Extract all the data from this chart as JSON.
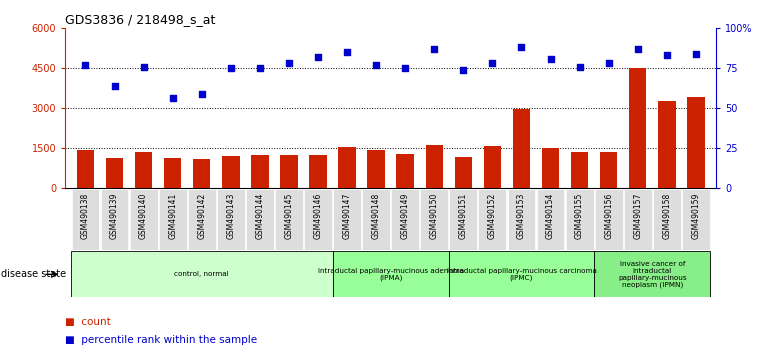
{
  "title": "GDS3836 / 218498_s_at",
  "samples": [
    "GSM490138",
    "GSM490139",
    "GSM490140",
    "GSM490141",
    "GSM490142",
    "GSM490143",
    "GSM490144",
    "GSM490145",
    "GSM490146",
    "GSM490147",
    "GSM490148",
    "GSM490149",
    "GSM490150",
    "GSM490151",
    "GSM490152",
    "GSM490153",
    "GSM490154",
    "GSM490155",
    "GSM490156",
    "GSM490157",
    "GSM490158",
    "GSM490159"
  ],
  "counts": [
    1430,
    1100,
    1350,
    1130,
    1090,
    1200,
    1230,
    1230,
    1230,
    1540,
    1400,
    1270,
    1600,
    1160,
    1550,
    2980,
    1510,
    1350,
    1350,
    4500,
    3280,
    3400
  ],
  "percentiles": [
    77,
    64,
    76,
    56,
    59,
    75,
    75,
    78,
    82,
    85,
    77,
    75,
    87,
    74,
    78,
    88,
    81,
    76,
    78,
    87,
    83,
    84
  ],
  "bar_color": "#cc2200",
  "dot_color": "#0000cc",
  "ylim_left": [
    0,
    6000
  ],
  "ylim_right": [
    0,
    100
  ],
  "yticks_left": [
    0,
    1500,
    3000,
    4500,
    6000
  ],
  "yticks_right": [
    0,
    25,
    50,
    75,
    100
  ],
  "ytick_labels_left": [
    "0",
    "1500",
    "3000",
    "4500",
    "6000"
  ],
  "ytick_labels_right": [
    "0",
    "25",
    "50",
    "75",
    "100%"
  ],
  "dotted_line_values": [
    1500,
    3000,
    4500
  ],
  "group_colors": [
    "#ccffcc",
    "#99ff99",
    "#99ff99",
    "#88ee88"
  ],
  "groups": [
    {
      "label": "control, normal",
      "start": 0,
      "end": 9
    },
    {
      "label": "intraductal papillary-mucinous adenoma\n(IPMA)",
      "start": 9,
      "end": 13
    },
    {
      "label": "intraductal papillary-mucinous carcinoma\n(IPMC)",
      "start": 13,
      "end": 18
    },
    {
      "label": "invasive cancer of\nintraductal\npapillary-mucinous\nneoplasm (IPMN)",
      "start": 18,
      "end": 22
    }
  ],
  "disease_state_label": "disease state",
  "xtick_bg": "#dddddd"
}
